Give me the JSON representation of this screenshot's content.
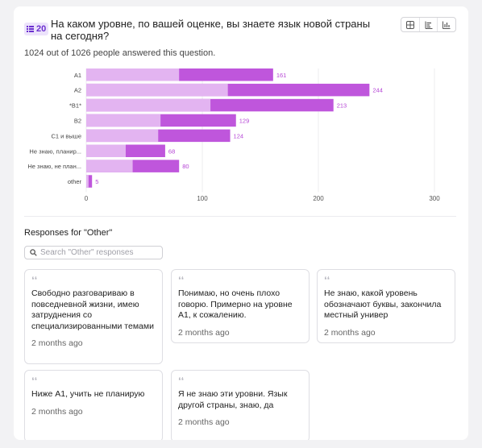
{
  "question": {
    "badge": "20",
    "title": "На каком уровне, по вашей оценке, вы знаете язык новой страны на сегодня?",
    "answered": "1024 out of 1026 people answered this question."
  },
  "view_toggle": [
    "table-icon",
    "bar-list-icon",
    "bar-chart-icon"
  ],
  "colors": {
    "bar_light": "#e3b4f1",
    "bar_dark": "#bf56dc",
    "value_label": "#b646d6",
    "accent": "#6b2fcf"
  },
  "chart_data": {
    "type": "bar",
    "orientation": "horizontal",
    "categories": [
      "A1",
      "A2",
      "*B1*",
      "B2",
      "C1 и выше",
      "Не знаю, планир...",
      "Не знаю, не план...",
      "other"
    ],
    "values": [
      161,
      244,
      213,
      129,
      124,
      68,
      80,
      5
    ],
    "light_segment": [
      80,
      122,
      107,
      64,
      62,
      34,
      40,
      2
    ],
    "xticks": [
      0,
      100,
      200,
      300
    ],
    "xlim": [
      0,
      300
    ],
    "grid": true
  },
  "other_section": {
    "title": "Responses for \"Other\"",
    "search_placeholder": "Search \"Other\" responses",
    "responses": [
      {
        "text": "Свободно разговариваю в повседневной жизни, имею затруднения со специализированными темами",
        "time": "2 months ago"
      },
      {
        "text": "Понимаю, но очень плохо говорю. Примерно на уровне А1, к сожалению.",
        "time": "2 months ago"
      },
      {
        "text": "Не знаю, какой уровень обозначают буквы, закончила местный универ",
        "time": "2 months ago"
      },
      {
        "text": "Ниже А1, учить не планирую",
        "time": "2 months ago"
      },
      {
        "text": "Я не знаю эти уровни. Язык другой страны, знаю, да",
        "time": "2 months ago"
      }
    ]
  }
}
